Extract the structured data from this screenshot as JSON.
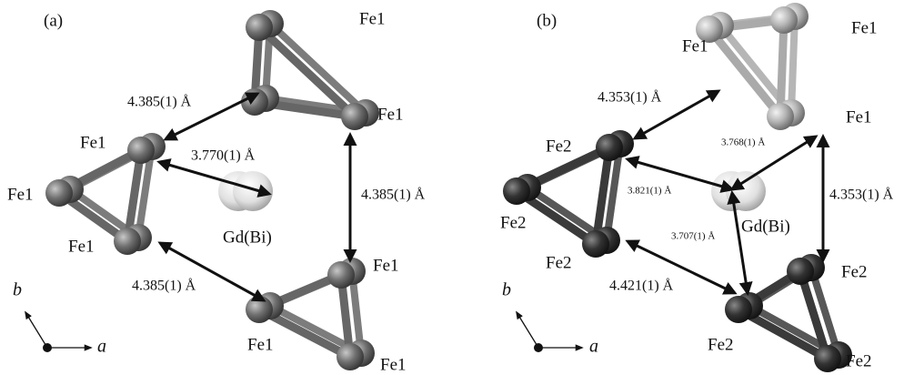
{
  "panels": [
    {
      "label": "(a)",
      "atoms": [
        "Fe1",
        "Fe1",
        "Fe1",
        "Fe1",
        "Fe1",
        "Fe1",
        "Fe1",
        "Fe1"
      ],
      "center": "Gd(Bi)",
      "distances": [
        "4.385(1) Å",
        "3.770(1) Å",
        "4.385(1) Å",
        "4.385(1) Å"
      ],
      "axes": {
        "b": "b",
        "a": "a"
      }
    },
    {
      "label": "(b)",
      "atoms": [
        "Fe1",
        "Fe1",
        "Fe1",
        "Fe2",
        "Fe2",
        "Fe2",
        "Fe2",
        "Fe2",
        "Fe2"
      ],
      "center": "Gd(Bi)",
      "distances": [
        "4.353(1) Å",
        "3.768(1) Å",
        "3.821(1) Å",
        "3.707(1) Å",
        "4.421(1) Å",
        "4.353(1) Å"
      ],
      "axes": {
        "b": "b",
        "a": "a"
      }
    }
  ]
}
